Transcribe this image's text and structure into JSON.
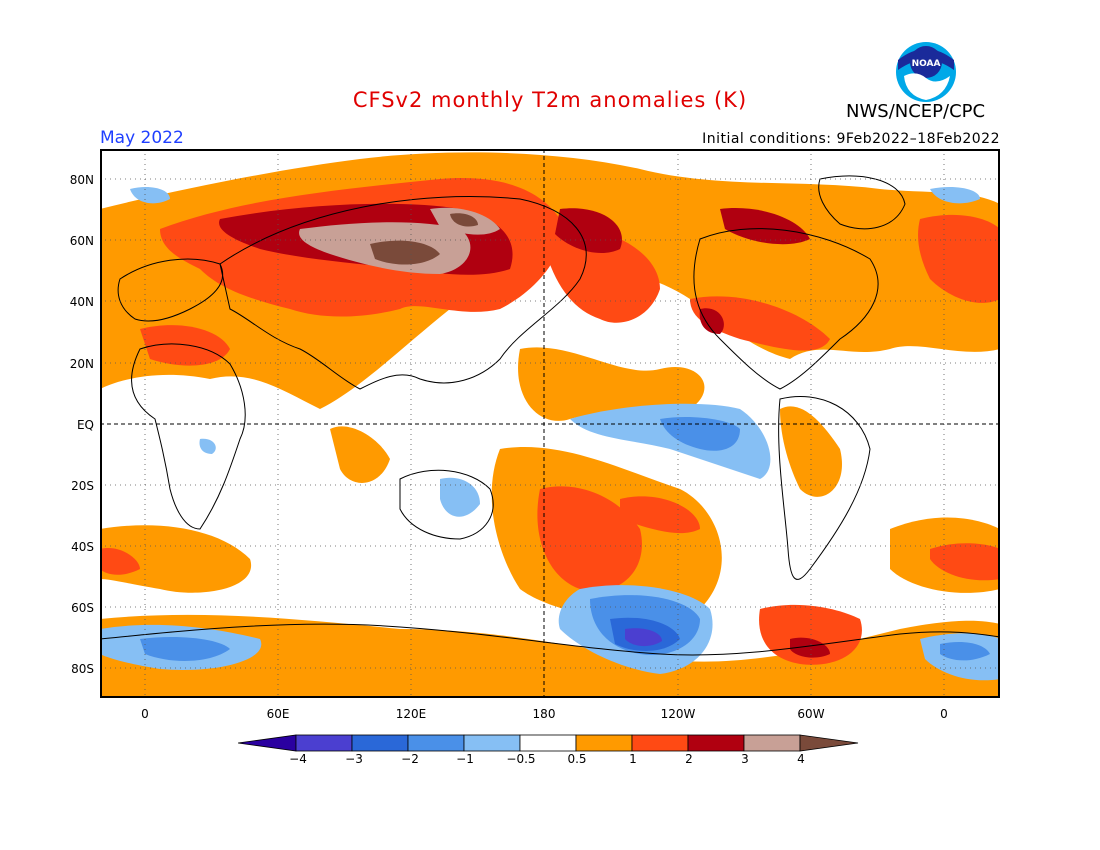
{
  "title": "CFSv2 monthly T2m anomalies (K)",
  "org": "NWS/NCEP/CPC",
  "logo_text": "NOAA",
  "month": "May 2022",
  "initial_conditions": "Initial conditions: 9Feb2022–18Feb2022",
  "lat_labels": [
    "80N",
    "60N",
    "40N",
    "20N",
    "EQ",
    "20S",
    "40S",
    "60S",
    "80S"
  ],
  "lon_labels": [
    "0",
    "60E",
    "120E",
    "180",
    "120W",
    "60W",
    "0"
  ],
  "colorbar": {
    "ticks": [
      "−4",
      "−3",
      "−2",
      "−1",
      "−0.5",
      "0.5",
      "1",
      "2",
      "3",
      "4"
    ],
    "colors": [
      "#2a00a0",
      "#4b3fd0",
      "#2a68d8",
      "#4a90e8",
      "#86bff4",
      "#ffffff",
      "#ff9a00",
      "#ff4a14",
      "#b00010",
      "#c8a096",
      "#7a4a3a"
    ]
  }
}
